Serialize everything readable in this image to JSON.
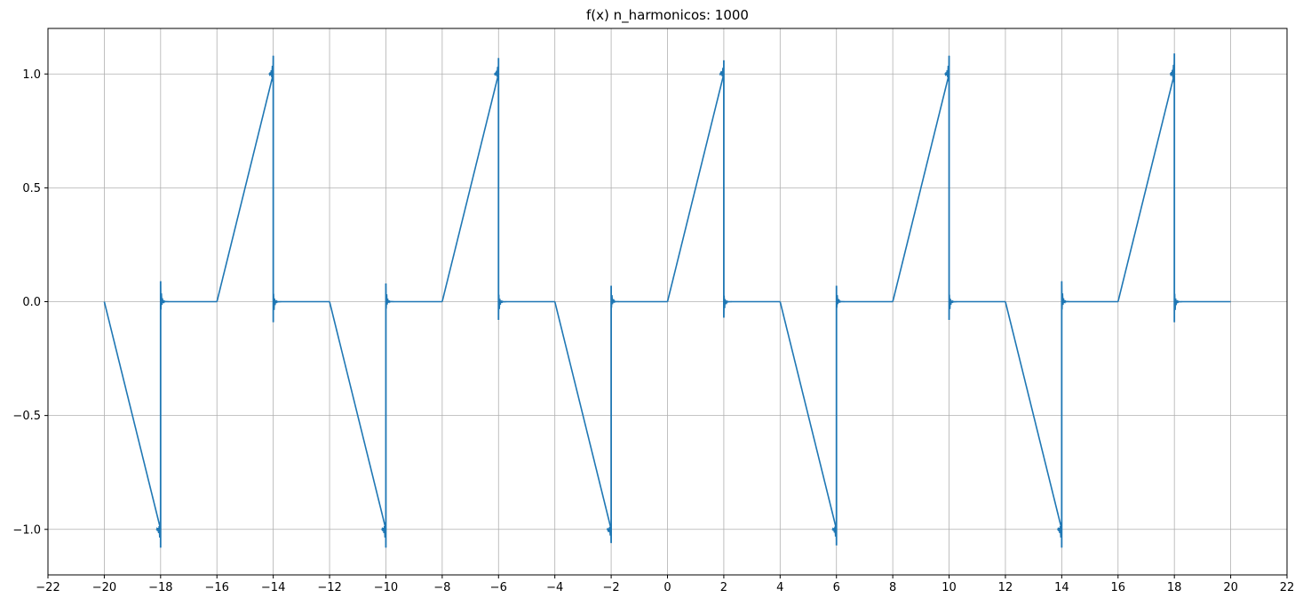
{
  "chart_data": {
    "type": "line",
    "title": "f(x) n_harmonicos: 1000",
    "xlabel": "",
    "ylabel": "",
    "xlim": [
      -22,
      22
    ],
    "ylim": [
      -1.2,
      1.2
    ],
    "grid": true,
    "x_ticks": [
      -22,
      -20,
      -18,
      -16,
      -14,
      -12,
      -10,
      -8,
      -6,
      -4,
      -2,
      0,
      2,
      4,
      6,
      8,
      10,
      12,
      14,
      16,
      18,
      20,
      22
    ],
    "x_tick_labels": [
      "−22",
      "−20",
      "−18",
      "−16",
      "−14",
      "−12",
      "−10",
      "−8",
      "−6",
      "−4",
      "−2",
      "0",
      "2",
      "4",
      "6",
      "8",
      "10",
      "12",
      "14",
      "16",
      "18",
      "20",
      "22"
    ],
    "y_ticks": [
      -1.0,
      -0.5,
      0.0,
      0.5,
      1.0
    ],
    "y_tick_labels": [
      "−1.0",
      "−0.5",
      "0.0",
      "0.5",
      "1.0"
    ],
    "series": [
      {
        "color": "#1f77b4",
        "description_points": [
          [
            -20,
            0
          ],
          [
            -18,
            -1.0
          ],
          [
            -16,
            0
          ],
          [
            -14,
            1.0
          ],
          [
            -12,
            0
          ],
          [
            -10,
            -1.0
          ],
          [
            -8,
            0
          ],
          [
            -6,
            1.0
          ],
          [
            -4,
            0
          ],
          [
            -2,
            -1.0
          ],
          [
            0,
            0
          ],
          [
            2,
            1.0
          ],
          [
            4,
            0
          ],
          [
            6,
            -1.0
          ],
          [
            8,
            0
          ],
          [
            10,
            1.0
          ],
          [
            12,
            0
          ],
          [
            14,
            -1.0
          ],
          [
            16,
            0
          ],
          [
            18,
            1.0
          ],
          [
            20,
            0
          ]
        ],
        "segments": [
          {
            "type": "ramp",
            "x": [
              -20,
              -18
            ],
            "y": [
              0,
              -1.0
            ]
          },
          {
            "type": "jump",
            "x": -18,
            "peak": -1.08,
            "overshoot": 0.09
          },
          {
            "type": "flat",
            "x": [
              -18,
              -16
            ],
            "y": 0
          },
          {
            "type": "ramp",
            "x": [
              -16,
              -14
            ],
            "y": [
              0,
              1.0
            ]
          },
          {
            "type": "jump",
            "x": -14,
            "peak": 1.08,
            "overshoot": -0.09
          },
          {
            "type": "flat",
            "x": [
              -14,
              -12
            ],
            "y": 0
          },
          {
            "type": "ramp",
            "x": [
              -12,
              -10
            ],
            "y": [
              0,
              -1.0
            ]
          },
          {
            "type": "jump",
            "x": -10,
            "peak": -1.08,
            "overshoot": 0.08
          },
          {
            "type": "flat",
            "x": [
              -10,
              -8
            ],
            "y": 0
          },
          {
            "type": "ramp",
            "x": [
              -8,
              -6
            ],
            "y": [
              0,
              1.0
            ]
          },
          {
            "type": "jump",
            "x": -6,
            "peak": 1.07,
            "overshoot": -0.08
          },
          {
            "type": "flat",
            "x": [
              -6,
              -4
            ],
            "y": 0
          },
          {
            "type": "ramp",
            "x": [
              -4,
              -2
            ],
            "y": [
              0,
              -1.0
            ]
          },
          {
            "type": "jump",
            "x": -2,
            "peak": -1.06,
            "overshoot": 0.07
          },
          {
            "type": "flat",
            "x": [
              -2,
              0
            ],
            "y": 0
          },
          {
            "type": "ramp",
            "x": [
              0,
              2
            ],
            "y": [
              0,
              1.0
            ]
          },
          {
            "type": "jump",
            "x": 2,
            "peak": 1.06,
            "overshoot": -0.07
          },
          {
            "type": "flat",
            "x": [
              2,
              4
            ],
            "y": 0
          },
          {
            "type": "ramp",
            "x": [
              4,
              6
            ],
            "y": [
              0,
              -1.0
            ]
          },
          {
            "type": "jump",
            "x": 6,
            "peak": -1.07,
            "overshoot": 0.07
          },
          {
            "type": "flat",
            "x": [
              6,
              8
            ],
            "y": 0
          },
          {
            "type": "ramp",
            "x": [
              8,
              10
            ],
            "y": [
              0,
              1.0
            ]
          },
          {
            "type": "jump",
            "x": 10,
            "peak": 1.08,
            "overshoot": -0.08
          },
          {
            "type": "flat",
            "x": [
              10,
              12
            ],
            "y": 0
          },
          {
            "type": "ramp",
            "x": [
              12,
              14
            ],
            "y": [
              0,
              -1.0
            ]
          },
          {
            "type": "jump",
            "x": 14,
            "peak": -1.08,
            "overshoot": 0.09
          },
          {
            "type": "flat",
            "x": [
              14,
              16
            ],
            "y": 0
          },
          {
            "type": "ramp",
            "x": [
              16,
              18
            ],
            "y": [
              0,
              1.0
            ]
          },
          {
            "type": "jump",
            "x": 18,
            "peak": 1.09,
            "overshoot": -0.09
          },
          {
            "type": "flat",
            "x": [
              18,
              20
            ],
            "y": 0
          }
        ]
      }
    ]
  }
}
